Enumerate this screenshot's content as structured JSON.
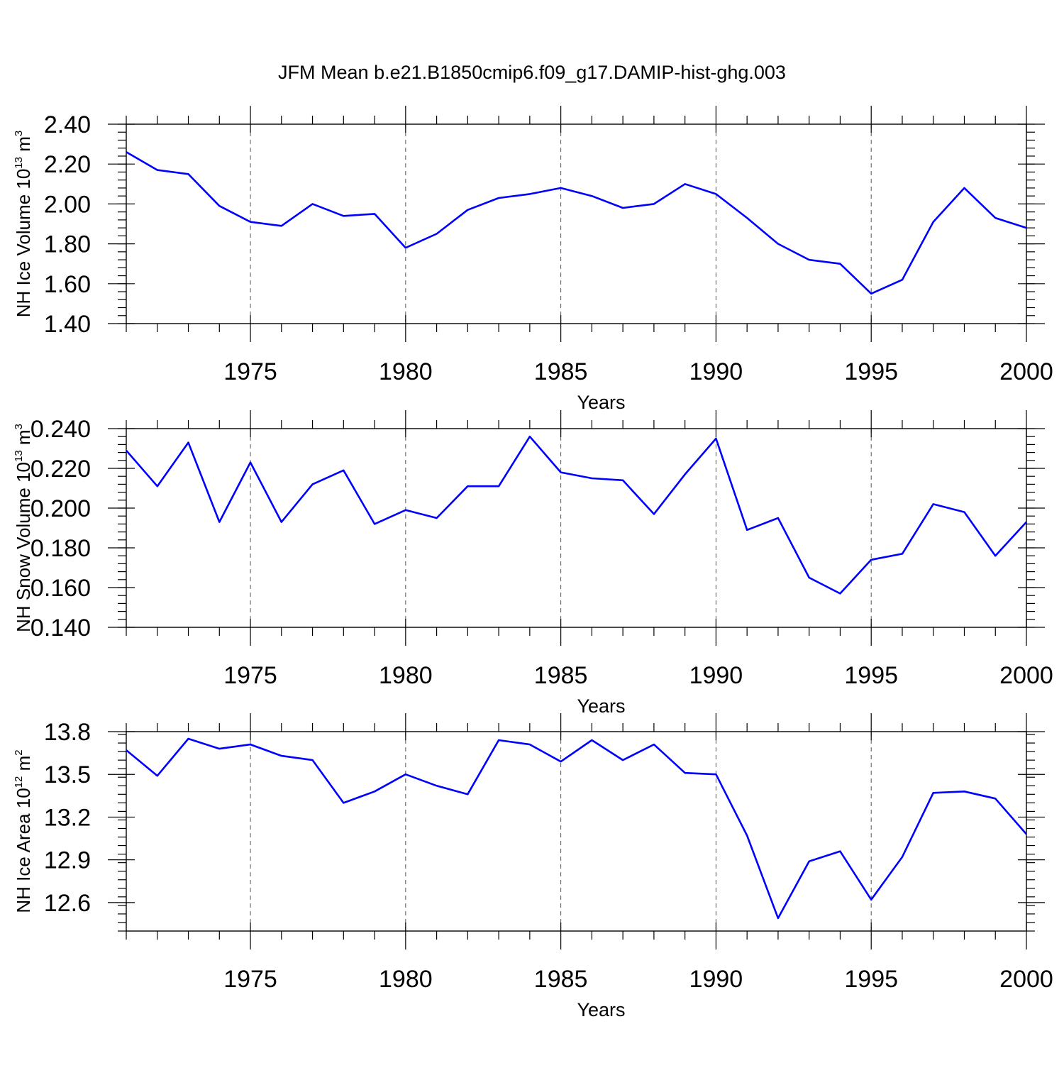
{
  "title": "JFM Mean b.e21.B1850cmip6.f09_g17.DAMIP-hist-ghg.003",
  "colors": {
    "line": "#0000ff",
    "grid": "#555555",
    "axis": "#000000"
  },
  "chart_data": [
    {
      "type": "line",
      "title": "JFM Mean b.e21.B1850cmip6.f09_g17.DAMIP-hist-ghg.003",
      "xlabel": "Years",
      "ylabel": "NH Ice Volume 10",
      "ylabel_exp": "13",
      "ylabel_unit": " m",
      "ylabel_unit_exp": "3",
      "xlim": [
        1971,
        2000
      ],
      "ylim": [
        1.4,
        2.4
      ],
      "xticks": [
        1975,
        1980,
        1985,
        1990,
        1995,
        2000
      ],
      "xtick_labels": [
        "1975",
        "1980",
        "1985",
        "1990",
        "1995",
        "2000"
      ],
      "yticks": [
        1.4,
        1.6,
        1.8,
        2.0,
        2.2,
        2.4
      ],
      "ytick_labels": [
        "1.40",
        "1.60",
        "1.80",
        "2.00",
        "2.20",
        "2.40"
      ],
      "yminor_step": 0.04,
      "grid": "vertical-dashed",
      "x": [
        1971,
        1972,
        1973,
        1974,
        1975,
        1976,
        1977,
        1978,
        1979,
        1980,
        1981,
        1982,
        1983,
        1984,
        1985,
        1986,
        1987,
        1988,
        1989,
        1990,
        1991,
        1992,
        1993,
        1994,
        1995,
        1996,
        1997,
        1998,
        1999,
        2000
      ],
      "series": [
        {
          "name": "NH Ice Volume",
          "values": [
            2.26,
            2.17,
            2.15,
            1.99,
            1.91,
            1.89,
            2.0,
            1.94,
            1.95,
            1.78,
            1.85,
            1.97,
            2.03,
            2.05,
            2.08,
            2.04,
            1.98,
            2.0,
            2.1,
            2.05,
            1.93,
            1.8,
            1.72,
            1.7,
            1.55,
            1.62,
            1.91,
            2.08,
            1.93,
            1.88
          ]
        }
      ]
    },
    {
      "type": "line",
      "xlabel": "Years",
      "ylabel": "NH Snow Volume 10",
      "ylabel_exp": "13",
      "ylabel_unit": " m",
      "ylabel_unit_exp": "3",
      "xlim": [
        1971,
        2000
      ],
      "ylim": [
        0.14,
        0.24
      ],
      "xticks": [
        1975,
        1980,
        1985,
        1990,
        1995,
        2000
      ],
      "xtick_labels": [
        "1975",
        "1980",
        "1985",
        "1990",
        "1995",
        "2000"
      ],
      "yticks": [
        0.14,
        0.16,
        0.18,
        0.2,
        0.22,
        0.24
      ],
      "ytick_labels": [
        "0.140",
        "0.160",
        "0.180",
        "0.200",
        "0.220",
        "0.240"
      ],
      "yminor_step": 0.004,
      "grid": "vertical-dashed",
      "x": [
        1971,
        1972,
        1973,
        1974,
        1975,
        1976,
        1977,
        1978,
        1979,
        1980,
        1981,
        1982,
        1983,
        1984,
        1985,
        1986,
        1987,
        1988,
        1989,
        1990,
        1991,
        1992,
        1993,
        1994,
        1995,
        1996,
        1997,
        1998,
        1999,
        2000
      ],
      "series": [
        {
          "name": "NH Snow Volume",
          "values": [
            0.229,
            0.211,
            0.233,
            0.193,
            0.223,
            0.193,
            0.212,
            0.219,
            0.192,
            0.199,
            0.195,
            0.211,
            0.211,
            0.236,
            0.218,
            0.215,
            0.214,
            0.197,
            0.217,
            0.235,
            0.189,
            0.195,
            0.165,
            0.157,
            0.174,
            0.177,
            0.202,
            0.198,
            0.176,
            0.193
          ]
        }
      ]
    },
    {
      "type": "line",
      "xlabel": "Years",
      "ylabel": "NH Ice Area 10",
      "ylabel_exp": "12",
      "ylabel_unit": " m",
      "ylabel_unit_exp": "2",
      "xlim": [
        1971,
        2000
      ],
      "ylim": [
        12.4,
        13.8
      ],
      "xticks": [
        1975,
        1980,
        1985,
        1990,
        1995,
        2000
      ],
      "xtick_labels": [
        "1975",
        "1980",
        "1985",
        "1990",
        "1995",
        "2000"
      ],
      "yticks": [
        12.6,
        12.9,
        13.2,
        13.5,
        13.8
      ],
      "ytick_labels": [
        "12.6",
        "12.9",
        "13.2",
        "13.5",
        "13.8"
      ],
      "yminor_step": 0.06,
      "grid": "vertical-dashed",
      "x": [
        1971,
        1972,
        1973,
        1974,
        1975,
        1976,
        1977,
        1978,
        1979,
        1980,
        1981,
        1982,
        1983,
        1984,
        1985,
        1986,
        1987,
        1988,
        1989,
        1990,
        1991,
        1992,
        1993,
        1994,
        1995,
        1996,
        1997,
        1998,
        1999,
        2000
      ],
      "series": [
        {
          "name": "NH Ice Area",
          "values": [
            13.67,
            13.49,
            13.75,
            13.68,
            13.71,
            13.63,
            13.6,
            13.3,
            13.38,
            13.5,
            13.42,
            13.36,
            13.74,
            13.71,
            13.59,
            13.74,
            13.6,
            13.71,
            13.51,
            13.5,
            13.07,
            12.49,
            12.89,
            12.96,
            12.62,
            12.92,
            13.37,
            13.38,
            13.33,
            13.08
          ]
        }
      ]
    }
  ]
}
